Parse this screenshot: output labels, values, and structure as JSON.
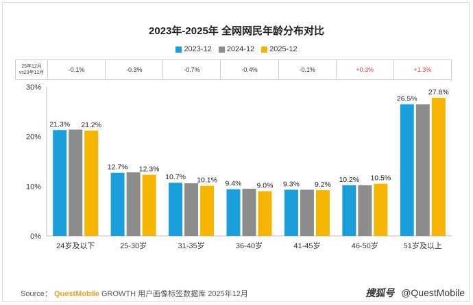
{
  "chart_data": {
    "type": "bar",
    "title": "2023年-2025年 全网网民年龄分布对比",
    "categories": [
      "24岁及以下",
      "25-30岁",
      "31-35岁",
      "36-40岁",
      "41-45岁",
      "46-50岁",
      "51岁及以上"
    ],
    "series": [
      {
        "name": "2023-12",
        "color": "#1a9fdc",
        "values": [
          21.3,
          12.7,
          10.7,
          9.4,
          9.3,
          10.2,
          26.5
        ]
      },
      {
        "name": "2024-12",
        "color": "#8c8c8c",
        "values": [
          21.4,
          12.8,
          10.6,
          9.5,
          9.3,
          10.2,
          26.5
        ]
      },
      {
        "name": "2025-12",
        "color": "#f7b500",
        "values": [
          21.2,
          12.3,
          10.1,
          9.0,
          9.2,
          10.5,
          27.8
        ]
      }
    ],
    "data_labels": [
      [
        "21.3%",
        "12.7%",
        "10.7%",
        "9.4%",
        "9.3%",
        "10.2%",
        "26.5%"
      ],
      [
        "",
        "",
        "",
        "",
        "",
        "",
        ""
      ],
      [
        "21.2%",
        "12.3%",
        "10.1%",
        "9.0%",
        "9.2%",
        "10.5%",
        "27.8%"
      ]
    ],
    "y_ticks": [
      "0%",
      "10%",
      "20%",
      "30%"
    ],
    "y_tick_values": [
      0,
      10,
      20,
      30
    ],
    "ylim": [
      0,
      30
    ],
    "legend": "top-center",
    "grid": false
  },
  "diff_row": {
    "header_line1": "25年12月",
    "header_line2": "vs23年12月",
    "values": [
      "-0.1%",
      "-0.3%",
      "-0.7%",
      "-0.4%",
      "-0.1%",
      "+0.3%",
      "+1.3%"
    ],
    "positive_color": "#e04040"
  },
  "source": {
    "prefix": "Source：",
    "brand": "QuestMobile",
    "text": " GROWTH 用户画像标签数据库 2025年12月"
  },
  "watermark": {
    "right_logo": "搜狐号",
    "right_text": "@QuestMobile"
  }
}
